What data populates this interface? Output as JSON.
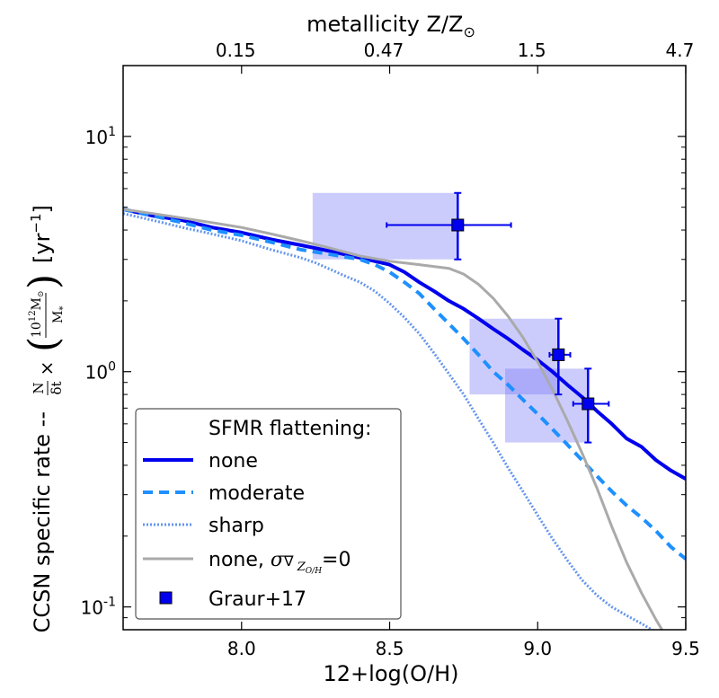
{
  "chart_data": {
    "type": "line",
    "title": "",
    "xlabel": "12+log(O/H)",
    "ylabel_main": "CCSN specific rate -- N/δt × (10¹²M⊙ / M*)  [yr⁻¹]",
    "ylabel_prefix": "CCSN specific rate --",
    "ylabel_unit": "[yr",
    "top_axis_label": "metallicity Z/Z",
    "yscale": "log",
    "xlim": [
      7.6,
      9.5
    ],
    "ylim": [
      0.08,
      20
    ],
    "x_ticks": [
      {
        "value": 8.0,
        "label": "8.0"
      },
      {
        "value": 8.5,
        "label": "8.5"
      },
      {
        "value": 9.0,
        "label": "9.0"
      },
      {
        "value": 9.5,
        "label": "9.5"
      }
    ],
    "y_ticks": [
      {
        "value": 0.1,
        "base": "10",
        "exp": "-1"
      },
      {
        "value": 1,
        "base": "10",
        "exp": "0"
      },
      {
        "value": 10,
        "base": "10",
        "exp": "1"
      }
    ],
    "top_ticks": [
      {
        "value": 7.98,
        "label": "0.15"
      },
      {
        "value": 8.48,
        "label": "0.47"
      },
      {
        "value": 8.98,
        "label": "1.5"
      },
      {
        "value": 9.48,
        "label": "4.7"
      }
    ],
    "legend_title": "SFMR flattening:",
    "series": [
      {
        "name": "none",
        "color": "#0000ee",
        "style": "solid",
        "width": 4,
        "x": [
          7.6,
          7.7,
          7.8,
          7.9,
          8.0,
          8.1,
          8.2,
          8.3,
          8.4,
          8.5,
          8.55,
          8.6,
          8.65,
          8.7,
          8.75,
          8.8,
          8.85,
          8.9,
          8.95,
          9.0,
          9.05,
          9.1,
          9.15,
          9.2,
          9.25,
          9.3,
          9.35,
          9.4,
          9.45,
          9.5
        ],
        "y": [
          4.9,
          4.6,
          4.4,
          4.1,
          3.9,
          3.65,
          3.45,
          3.25,
          3.05,
          2.85,
          2.65,
          2.4,
          2.2,
          2.0,
          1.85,
          1.68,
          1.52,
          1.38,
          1.24,
          1.12,
          1.0,
          0.88,
          0.78,
          0.68,
          0.6,
          0.52,
          0.48,
          0.42,
          0.38,
          0.35
        ]
      },
      {
        "name": "moderate",
        "color": "#1e90ff",
        "style": "dashed",
        "width": 4,
        "x": [
          7.6,
          7.7,
          7.8,
          7.9,
          8.0,
          8.1,
          8.2,
          8.3,
          8.4,
          8.45,
          8.5,
          8.55,
          8.6,
          8.65,
          8.7,
          8.75,
          8.8,
          8.85,
          8.9,
          8.95,
          9.0,
          9.05,
          9.1,
          9.15,
          9.2,
          9.25,
          9.3,
          9.35,
          9.4,
          9.45,
          9.5
        ],
        "y": [
          4.9,
          4.6,
          4.3,
          4.0,
          3.8,
          3.55,
          3.3,
          3.15,
          3.0,
          2.85,
          2.65,
          2.4,
          2.15,
          1.85,
          1.6,
          1.38,
          1.18,
          1.0,
          0.88,
          0.76,
          0.66,
          0.57,
          0.49,
          0.42,
          0.36,
          0.31,
          0.27,
          0.24,
          0.21,
          0.18,
          0.16
        ]
      },
      {
        "name": "sharp",
        "color": "#6495ed",
        "style": "dotted",
        "width": 3,
        "x": [
          7.6,
          7.7,
          7.8,
          7.9,
          8.0,
          8.1,
          8.2,
          8.25,
          8.3,
          8.35,
          8.4,
          8.45,
          8.5,
          8.55,
          8.6,
          8.65,
          8.7,
          8.75,
          8.8,
          8.85,
          8.9,
          8.95,
          9.0,
          9.05,
          9.1,
          9.15,
          9.2,
          9.25,
          9.3,
          9.35,
          9.4
        ],
        "y": [
          4.7,
          4.4,
          4.1,
          3.85,
          3.6,
          3.3,
          3.05,
          2.9,
          2.72,
          2.55,
          2.4,
          2.2,
          1.95,
          1.7,
          1.45,
          1.2,
          0.98,
          0.8,
          0.63,
          0.5,
          0.39,
          0.31,
          0.245,
          0.195,
          0.158,
          0.13,
          0.112,
          0.1,
          0.092,
          0.085,
          0.078
        ]
      },
      {
        "name": "none, σ∇ Z_O/H=0",
        "color": "#aaaaaa",
        "style": "solid",
        "width": 3,
        "x": [
          7.6,
          7.7,
          7.8,
          7.9,
          8.0,
          8.1,
          8.2,
          8.3,
          8.4,
          8.5,
          8.6,
          8.7,
          8.75,
          8.8,
          8.85,
          8.9,
          8.95,
          9.0,
          9.05,
          9.1,
          9.15,
          9.2,
          9.25,
          9.3,
          9.35,
          9.4,
          9.42
        ],
        "y": [
          4.9,
          4.7,
          4.5,
          4.3,
          4.1,
          3.85,
          3.6,
          3.35,
          3.1,
          2.95,
          2.85,
          2.75,
          2.6,
          2.35,
          2.05,
          1.72,
          1.4,
          1.1,
          0.84,
          0.62,
          0.45,
          0.32,
          0.22,
          0.155,
          0.115,
          0.088,
          0.08
        ]
      }
    ],
    "observations": {
      "name": "Graur+17",
      "color": "#0000ee",
      "points": [
        {
          "x": 8.73,
          "y": 4.2,
          "xerr": [
            0.24,
            0.18
          ],
          "yerr": [
            1.2,
            1.55
          ],
          "box_x": [
            8.24,
            8.73
          ],
          "box_y": [
            3.0,
            5.75
          ]
        },
        {
          "x": 9.07,
          "y": 1.18,
          "xerr": [
            0.03,
            0.04
          ],
          "yerr": [
            0.38,
            0.5
          ],
          "box_x": [
            8.77,
            9.07
          ],
          "box_y": [
            0.8,
            1.68
          ]
        },
        {
          "x": 9.17,
          "y": 0.73,
          "xerr": [
            0.05,
            0.07
          ],
          "yerr": [
            0.23,
            0.3
          ],
          "box_x": [
            8.89,
            9.17
          ],
          "box_y": [
            0.5,
            1.03
          ]
        }
      ]
    }
  },
  "legend": {
    "title": "SFMR flattening:",
    "items": [
      "none",
      "moderate",
      "sharp",
      "none, "
    ],
    "gray_suffix": "=0",
    "observations": "Graur+17"
  },
  "frac": {
    "num": "10",
    "num_exp": "12",
    "num_tail": "M",
    "den": "M",
    "n": "N",
    "dt": "δt"
  }
}
